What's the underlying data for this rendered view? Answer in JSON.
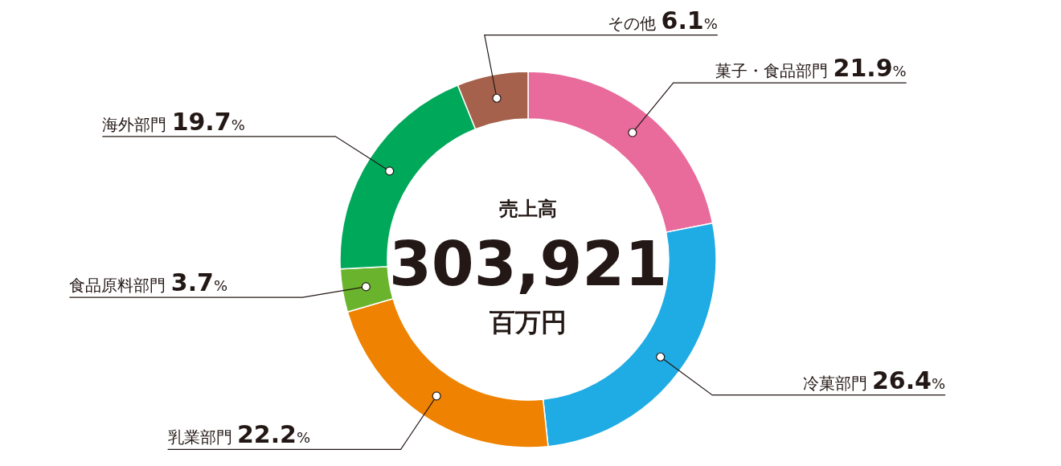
{
  "chart_data": {
    "type": "donut",
    "title": "売上高",
    "subtitle": "303,921",
    "annotations": [
      "百万円"
    ],
    "categories": [
      "菓子・食品部門",
      "冷菓部門",
      "乳業部門",
      "食品原料部門",
      "海外部門",
      "その他"
    ],
    "values": [
      21.9,
      26.4,
      22.2,
      3.7,
      19.7,
      6.1
    ],
    "value_labels": [
      "21.9%",
      "26.4%",
      "22.2%",
      "3.7%",
      "19.7%",
      "6.1%"
    ],
    "colors": [
      "#e96b9b",
      "#1fabe3",
      "#ef8200",
      "#6ab42d",
      "#00a85a",
      "#a5614b"
    ]
  }
}
